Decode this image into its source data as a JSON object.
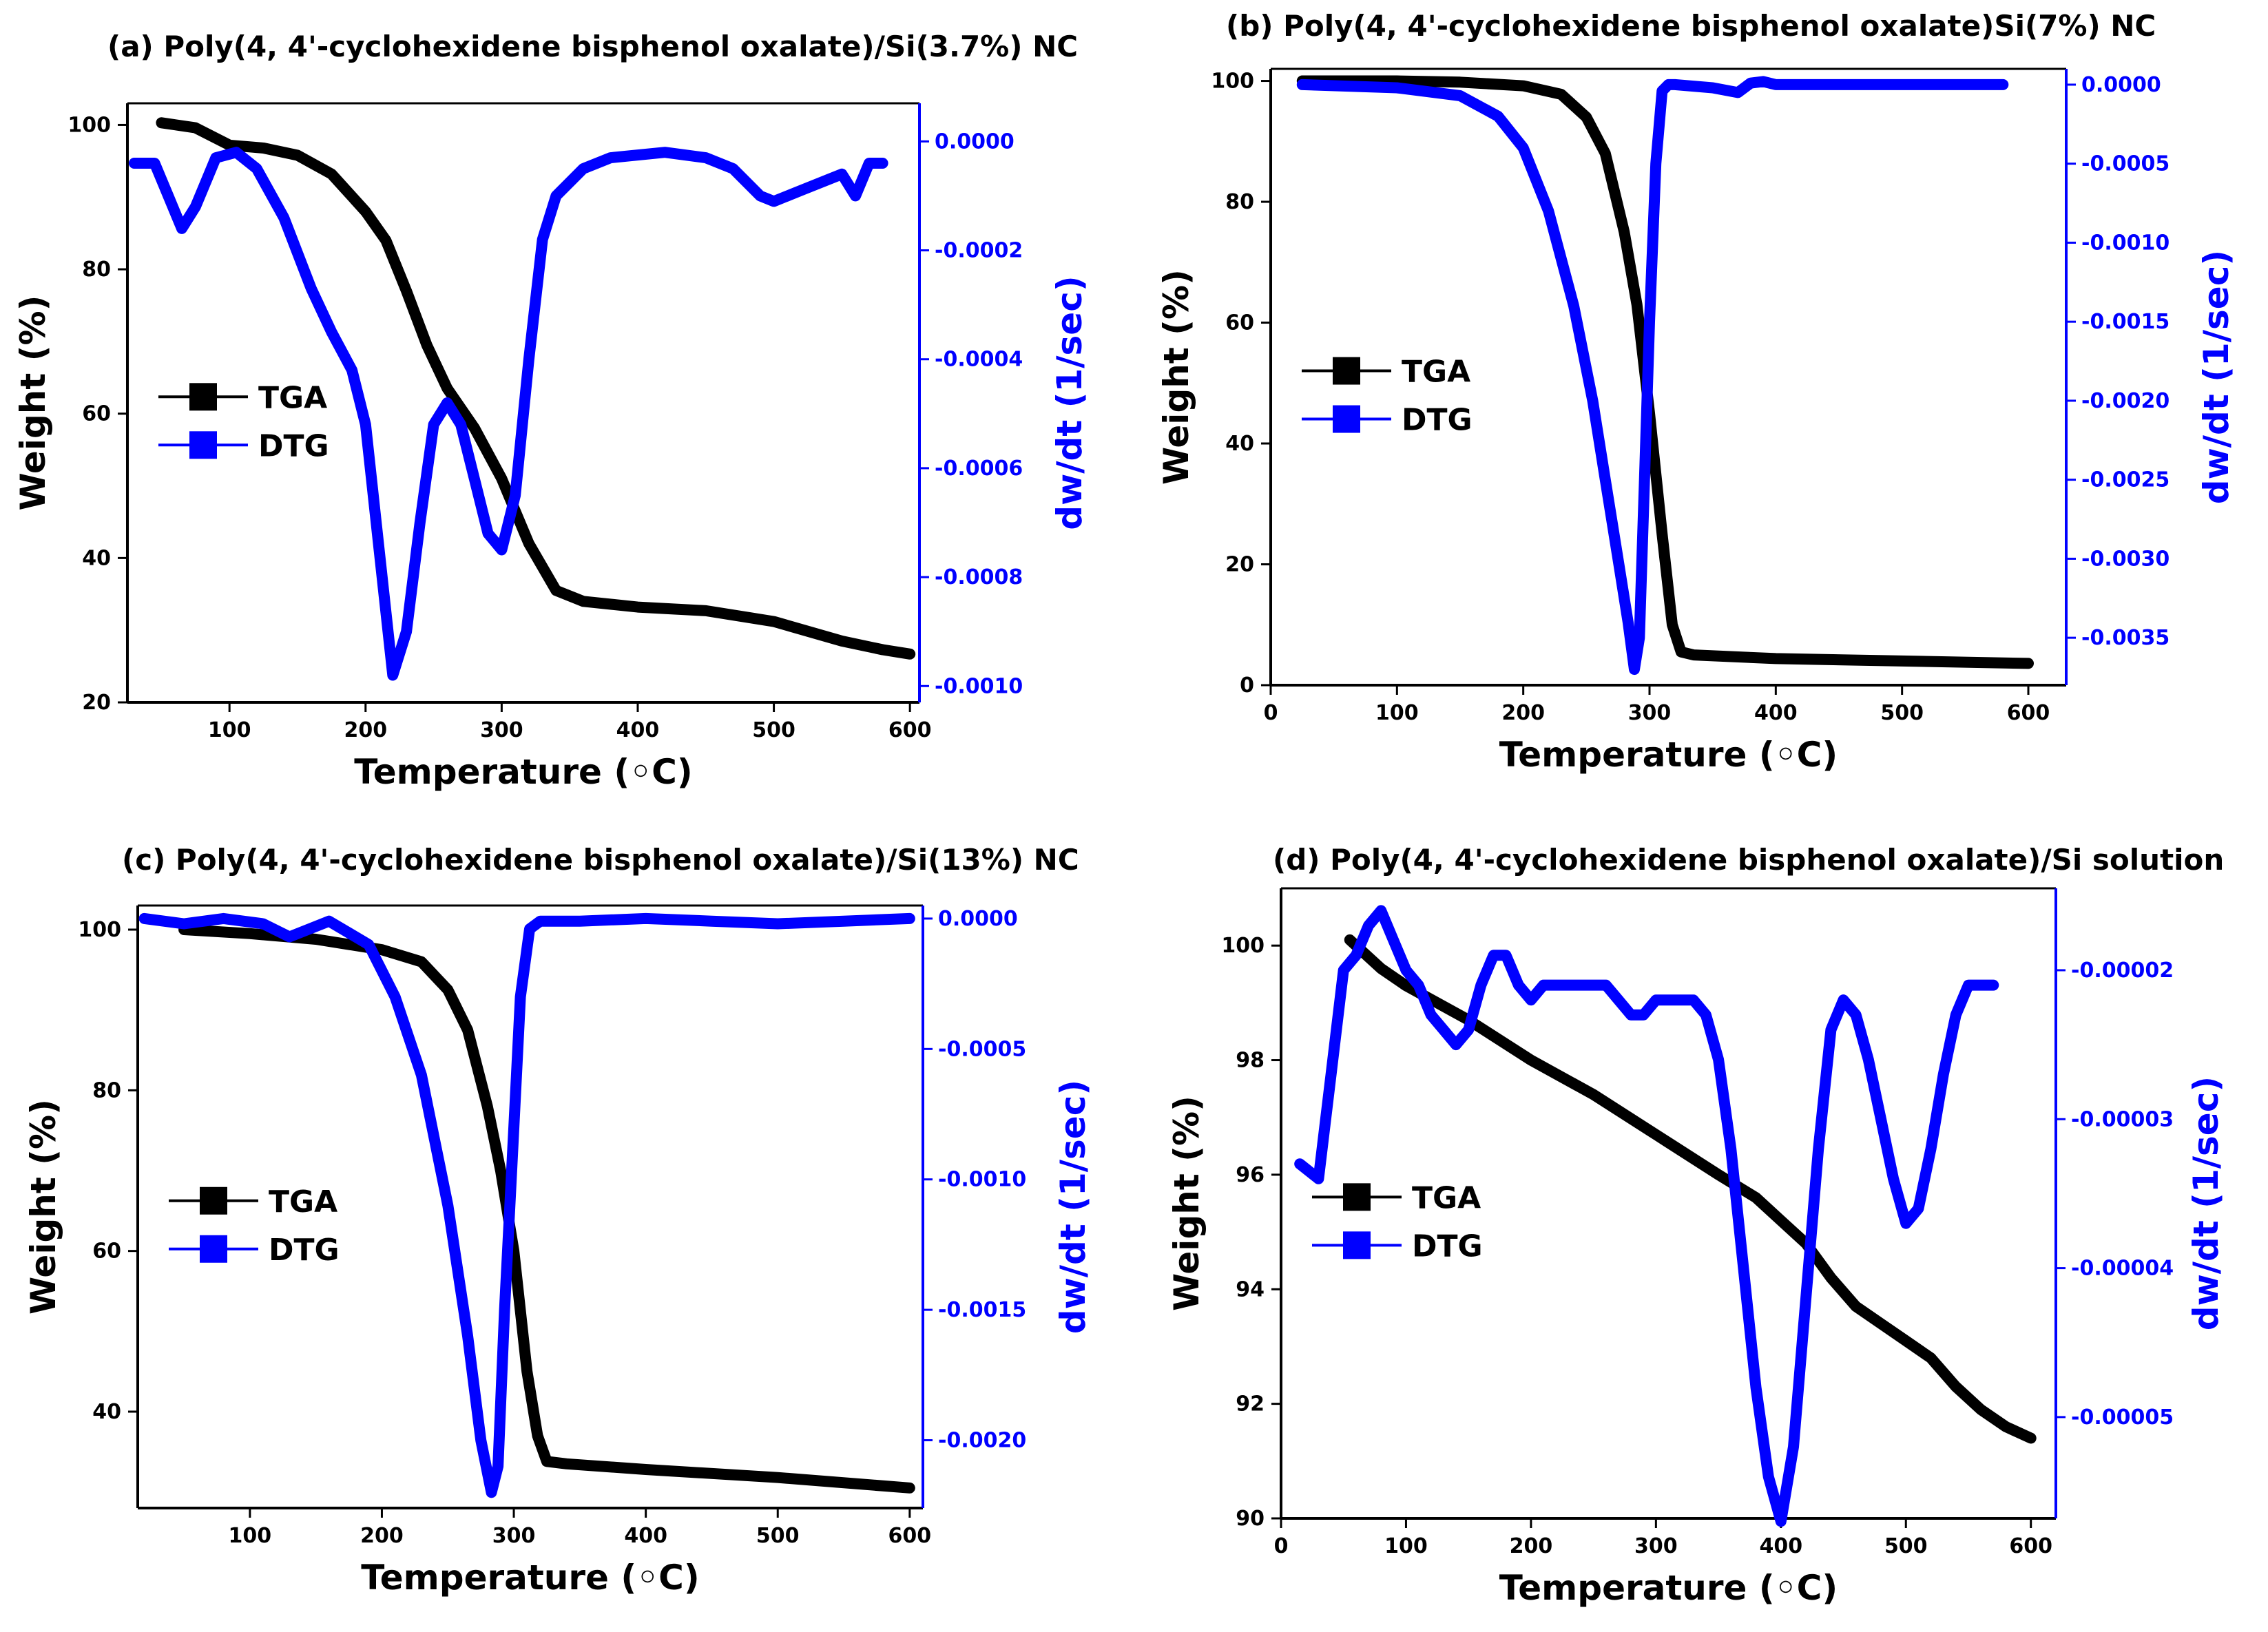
{
  "figure": {
    "colors": {
      "tga": "#000000",
      "dtg": "#0000ff",
      "axis": "#000000"
    }
  },
  "chart_data": [
    {
      "id": "a",
      "type": "line",
      "title": "(a) Poly(4, 4'-cyclohexidene bisphenol oxalate)/Si(3.7%) NC",
      "xlabel": "Temperature (◦C)",
      "ylabel": "Weight (%)",
      "y2label": "dw/dt (1/sec)",
      "xlim": [
        25,
        607
      ],
      "xticks": [
        100,
        200,
        300,
        400,
        500,
        600
      ],
      "xtick_labels": [
        "100",
        "200",
        "300",
        "400",
        "500",
        "600"
      ],
      "ylim": [
        20,
        103
      ],
      "yticks": [
        20,
        40,
        60,
        80,
        100
      ],
      "ytick_labels": [
        "20",
        "40",
        "60",
        "80",
        "100"
      ],
      "y2lim": [
        -0.00103,
        7e-05
      ],
      "y2ticks": [
        0,
        -0.0002,
        -0.0004,
        -0.0006,
        -0.0008,
        -0.001
      ],
      "y2tick_labels": [
        "0.0000",
        "-0.0002",
        "-0.0004",
        "-0.0006",
        "-0.0008",
        "-0.0010"
      ],
      "legend": [
        "TGA",
        "DTG"
      ],
      "series": [
        {
          "name": "TGA",
          "axis": "left",
          "x": [
            50,
            75,
            100,
            125,
            150,
            175,
            200,
            215,
            230,
            245,
            260,
            280,
            300,
            320,
            340,
            360,
            400,
            450,
            500,
            550,
            580,
            600
          ],
          "y": [
            100.3,
            99.6,
            97.2,
            96.8,
            95.8,
            93.2,
            88.0,
            84.0,
            77.0,
            69.5,
            63.5,
            58.0,
            51.0,
            42.0,
            35.5,
            34.0,
            33.2,
            32.7,
            31.2,
            28.5,
            27.3,
            26.7
          ]
        },
        {
          "name": "DTG",
          "axis": "right",
          "x": [
            30,
            45,
            55,
            65,
            75,
            90,
            105,
            120,
            140,
            160,
            175,
            190,
            200,
            210,
            220,
            230,
            240,
            250,
            260,
            270,
            280,
            290,
            300,
            310,
            320,
            330,
            340,
            360,
            380,
            420,
            450,
            470,
            490,
            500,
            520,
            540,
            550,
            560,
            570,
            580
          ],
          "y": [
            -4e-05,
            -4e-05,
            -0.0001,
            -0.00016,
            -0.00012,
            -3e-05,
            -2e-05,
            -5e-05,
            -0.00014,
            -0.00027,
            -0.00035,
            -0.00042,
            -0.00052,
            -0.00075,
            -0.00098,
            -0.0009,
            -0.0007,
            -0.00052,
            -0.00048,
            -0.00052,
            -0.00062,
            -0.00072,
            -0.00075,
            -0.00065,
            -0.0004,
            -0.00018,
            -0.0001,
            -5e-05,
            -3e-05,
            -2e-05,
            -3e-05,
            -5e-05,
            -0.0001,
            -0.00011,
            -9e-05,
            -7e-05,
            -6e-05,
            -0.0001,
            -4e-05,
            -4e-05
          ]
        }
      ]
    },
    {
      "id": "b",
      "type": "line",
      "title": "(b) Poly(4, 4'-cyclohexidene bisphenol oxalate)Si(7%) NC",
      "xlabel": "Temperature (◦C)",
      "ylabel": "Weight (%)",
      "y2label": "dw/dt (1/sec)",
      "xlim": [
        0,
        630
      ],
      "xticks": [
        0,
        100,
        200,
        300,
        400,
        500,
        600
      ],
      "xtick_labels": [
        "0",
        "100",
        "200",
        "300",
        "400",
        "500",
        "600"
      ],
      "ylim": [
        0,
        102
      ],
      "yticks": [
        0,
        20,
        40,
        60,
        80,
        100
      ],
      "ytick_labels": [
        "0",
        "20",
        "40",
        "60",
        "80",
        "100"
      ],
      "y2lim": [
        -0.0038,
        0.0001
      ],
      "y2ticks": [
        0,
        -0.0005,
        -0.001,
        -0.0015,
        -0.002,
        -0.0025,
        -0.003,
        -0.0035
      ],
      "y2tick_labels": [
        "0.0000",
        "-0.0005",
        "-0.0010",
        "-0.0015",
        "-0.0020",
        "-0.0025",
        "-0.0030",
        "-0.0035"
      ],
      "legend": [
        "TGA",
        "DTG"
      ],
      "series": [
        {
          "name": "TGA",
          "axis": "left",
          "x": [
            25,
            100,
            150,
            200,
            230,
            250,
            265,
            280,
            290,
            300,
            310,
            318,
            325,
            335,
            400,
            500,
            600
          ],
          "y": [
            100,
            100,
            99.8,
            99.2,
            97.8,
            94.0,
            88.0,
            75.0,
            63.0,
            45.0,
            25.0,
            10.0,
            5.5,
            5.0,
            4.4,
            4.0,
            3.6
          ]
        },
        {
          "name": "DTG",
          "axis": "right",
          "x": [
            25,
            100,
            150,
            180,
            200,
            220,
            240,
            255,
            265,
            275,
            283,
            288,
            292,
            296,
            300,
            305,
            310,
            315,
            320,
            350,
            370,
            380,
            390,
            400,
            500,
            580
          ],
          "y": [
            0,
            -2e-05,
            -7e-05,
            -0.0002,
            -0.0004,
            -0.0008,
            -0.0014,
            -0.002,
            -0.0025,
            -0.003,
            -0.0034,
            -0.0037,
            -0.0035,
            -0.0025,
            -0.0015,
            -0.0005,
            -4e-05,
            0,
            0,
            -2e-05,
            -5e-05,
            1e-05,
            2e-05,
            0,
            0,
            0
          ]
        }
      ]
    },
    {
      "id": "c",
      "type": "line",
      "title": "(c) Poly(4, 4'-cyclohexidene bisphenol oxalate)/Si(13%) NC",
      "xlabel": "Temperature (◦C)",
      "ylabel": "Weight (%)",
      "y2label": "dw/dt (1/sec)",
      "xlim": [
        15,
        610
      ],
      "xticks": [
        100,
        200,
        300,
        400,
        500,
        600
      ],
      "xtick_labels": [
        "100",
        "200",
        "300",
        "400",
        "500",
        "600"
      ],
      "ylim": [
        28,
        103
      ],
      "yticks": [
        40,
        60,
        80,
        100
      ],
      "ytick_labels": [
        "40",
        "60",
        "80",
        "100"
      ],
      "y2lim": [
        -0.00226,
        5e-05
      ],
      "y2ticks": [
        0,
        -0.0005,
        -0.001,
        -0.0015,
        -0.002
      ],
      "y2tick_labels": [
        "0.0000",
        "-0.0005",
        "-0.0010",
        "-0.0015",
        "-0.0020"
      ],
      "legend": [
        "TGA",
        "DTG"
      ],
      "series": [
        {
          "name": "TGA",
          "axis": "left",
          "x": [
            50,
            100,
            150,
            200,
            230,
            250,
            265,
            280,
            290,
            300,
            310,
            318,
            325,
            340,
            400,
            500,
            600
          ],
          "y": [
            100.0,
            99.5,
            98.8,
            97.5,
            96.0,
            92.5,
            87.5,
            78.0,
            70.0,
            60.0,
            45.0,
            37.0,
            33.8,
            33.5,
            32.8,
            31.8,
            30.5
          ]
        },
        {
          "name": "DTG",
          "axis": "right",
          "x": [
            20,
            50,
            80,
            110,
            130,
            160,
            190,
            210,
            230,
            250,
            265,
            275,
            283,
            288,
            293,
            300,
            305,
            312,
            320,
            350,
            400,
            450,
            500,
            550,
            600
          ],
          "y": [
            0,
            -2e-05,
            0,
            -2e-05,
            -7e-05,
            -1e-05,
            -0.0001,
            -0.0003,
            -0.0006,
            -0.0011,
            -0.0016,
            -0.002,
            -0.0022,
            -0.0021,
            -0.0015,
            -0.0008,
            -0.0003,
            -4e-05,
            -1e-05,
            -1e-05,
            0,
            -1e-05,
            -2e-05,
            -1e-05,
            0
          ]
        }
      ]
    },
    {
      "id": "d",
      "type": "line",
      "title": "(d) Poly(4, 4'-cyclohexidene bisphenol oxalate)/Si solution",
      "xlabel": "Temperature (◦C)",
      "ylabel": "Weight (%)",
      "y2label": "dw/dt (1/sec)",
      "xlim": [
        0,
        620
      ],
      "xticks": [
        0,
        100,
        200,
        300,
        400,
        500,
        600
      ],
      "xtick_labels": [
        "0",
        "100",
        "200",
        "300",
        "400",
        "500",
        "600"
      ],
      "ylim": [
        90,
        101
      ],
      "yticks": [
        90,
        92,
        94,
        96,
        98,
        100
      ],
      "ytick_labels": [
        "90",
        "92",
        "94",
        "96",
        "98",
        "100"
      ],
      "y2lim": [
        -5.68e-05,
        -1.45e-05
      ],
      "y2ticks": [
        -2e-05,
        -3e-05,
        -4e-05,
        -5e-05
      ],
      "y2tick_labels": [
        "-0.00002",
        "-0.00003",
        "-0.00004",
        "-0.00005"
      ],
      "legend": [
        "TGA",
        "DTG"
      ],
      "series": [
        {
          "name": "TGA",
          "axis": "left",
          "x": [
            55,
            80,
            100,
            150,
            200,
            250,
            300,
            350,
            380,
            400,
            420,
            440,
            460,
            480,
            500,
            520,
            540,
            560,
            580,
            600
          ],
          "y": [
            100.1,
            99.6,
            99.3,
            98.7,
            98.0,
            97.4,
            96.7,
            96.0,
            95.6,
            95.2,
            94.8,
            94.2,
            93.7,
            93.4,
            93.1,
            92.8,
            92.3,
            91.9,
            91.6,
            91.4
          ]
        },
        {
          "name": "DTG",
          "axis": "right",
          "x": [
            15,
            30,
            40,
            50,
            60,
            70,
            80,
            90,
            100,
            110,
            120,
            130,
            140,
            150,
            160,
            170,
            180,
            190,
            200,
            210,
            220,
            240,
            260,
            270,
            280,
            290,
            300,
            310,
            320,
            330,
            340,
            350,
            360,
            370,
            380,
            390,
            400,
            410,
            420,
            430,
            440,
            450,
            460,
            470,
            480,
            490,
            500,
            510,
            520,
            530,
            540,
            550,
            560,
            570
          ],
          "y": [
            -3.3e-05,
            -3.4e-05,
            -2.7e-05,
            -2e-05,
            -1.9e-05,
            -1.7e-05,
            -1.6e-05,
            -1.8e-05,
            -2e-05,
            -2.1e-05,
            -2.3e-05,
            -2.4e-05,
            -2.5e-05,
            -2.4e-05,
            -2.1e-05,
            -1.9e-05,
            -1.9e-05,
            -2.1e-05,
            -2.2e-05,
            -2.1e-05,
            -2.1e-05,
            -2.1e-05,
            -2.1e-05,
            -2.2e-05,
            -2.3e-05,
            -2.3e-05,
            -2.2e-05,
            -2.2e-05,
            -2.2e-05,
            -2.2e-05,
            -2.3e-05,
            -2.6e-05,
            -3.2e-05,
            -4e-05,
            -4.8e-05,
            -5.4e-05,
            -5.7e-05,
            -5.2e-05,
            -4.2e-05,
            -3.2e-05,
            -2.4e-05,
            -2.2e-05,
            -2.3e-05,
            -2.6e-05,
            -3e-05,
            -3.4e-05,
            -3.7e-05,
            -3.6e-05,
            -3.2e-05,
            -2.7e-05,
            -2.3e-05,
            -2.1e-05,
            -2.1e-05,
            -2.1e-05
          ]
        }
      ]
    }
  ]
}
